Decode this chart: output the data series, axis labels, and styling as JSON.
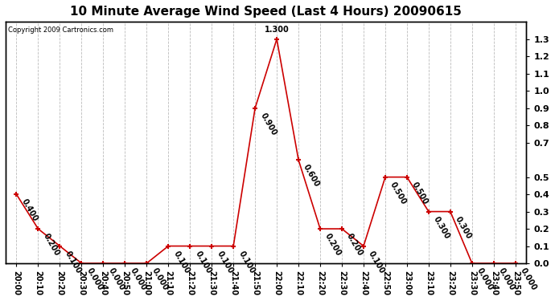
{
  "title": "10 Minute Average Wind Speed (Last 4 Hours) 20090615",
  "copyright": "Copyright 2009 Cartronics.com",
  "x_labels": [
    "20:00",
    "20:10",
    "20:20",
    "20:30",
    "20:40",
    "20:50",
    "21:00",
    "21:10",
    "21:20",
    "21:30",
    "21:40",
    "21:50",
    "22:00",
    "22:10",
    "22:20",
    "22:30",
    "22:40",
    "22:50",
    "23:00",
    "23:10",
    "23:20",
    "23:30",
    "23:40",
    "23:50"
  ],
  "y_values": [
    0.4,
    0.2,
    0.1,
    0.0,
    0.0,
    0.0,
    0.0,
    0.1,
    0.1,
    0.1,
    0.1,
    0.9,
    1.3,
    0.6,
    0.2,
    0.2,
    0.1,
    0.5,
    0.5,
    0.3,
    0.3,
    0.0,
    0.0,
    0.0
  ],
  "line_color": "#cc0000",
  "marker": "+",
  "marker_size": 5,
  "background_color": "#ffffff",
  "grid_color": "#bbbbbb",
  "ylim": [
    0.0,
    1.4
  ],
  "yticks_right": [
    0.0,
    0.1,
    0.2,
    0.3,
    0.4,
    0.5,
    0.7,
    0.8,
    0.9,
    1.0,
    1.1,
    1.2,
    1.3
  ],
  "yticks_left": [],
  "title_fontsize": 11,
  "label_fontsize": 7,
  "annotation_fontsize": 7,
  "annotation_color": "#000000",
  "annotation_rotation": -60
}
